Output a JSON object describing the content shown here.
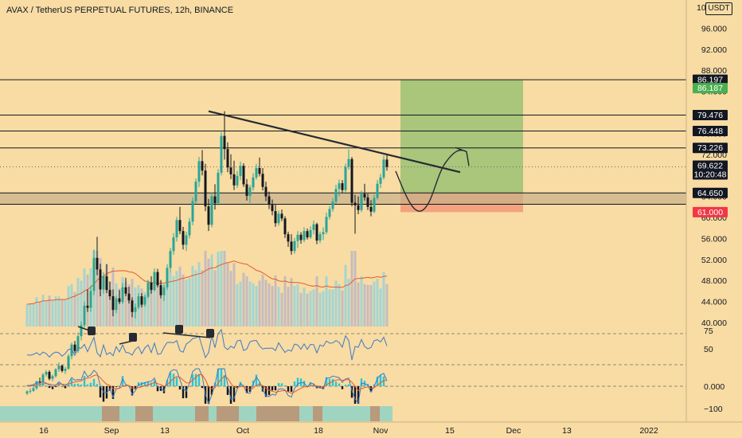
{
  "chart_data": {
    "type": "candlestick",
    "title": "AVAX / TetherUS PERPETUAL FUTURES, 12h, BINANCE",
    "quote_currency": "USDT",
    "price_ticks": [
      "100.000",
      "96.000",
      "92.000",
      "88.000",
      "84.000",
      "80.000",
      "76.000",
      "72.000",
      "68.000",
      "64.000",
      "60.000",
      "56.000",
      "52.000",
      "48.000",
      "44.000",
      "40.000"
    ],
    "x_ticks": [
      "16",
      "Sep",
      "13",
      "Oct",
      "18",
      "Nov",
      "15",
      "Dec",
      "13",
      "2022"
    ],
    "rsi_ticks": [
      "75",
      "50"
    ],
    "macd_ticks": [
      "0.000",
      "−100"
    ],
    "horizontal_levels": [
      {
        "price": 86.197,
        "label": "86.197",
        "color": "#131722",
        "text_color": "#ffffff"
      },
      {
        "price": 79.476,
        "label": "79.476",
        "color": "#131722",
        "text_color": "#ffffff"
      },
      {
        "price": 76.448,
        "label": "76.448",
        "color": "#131722",
        "text_color": "#ffffff"
      },
      {
        "price": 73.226,
        "label": "73.226",
        "color": "#131722",
        "text_color": "#ffffff"
      },
      {
        "price": 64.65,
        "label": "64.650",
        "color": "#131722",
        "text_color": "#ffffff"
      },
      {
        "price": 62.5,
        "label": "",
        "color": "#131722",
        "text_color": "#ffffff"
      }
    ],
    "price_tags": [
      {
        "price": 84.6,
        "label": "86.187",
        "color": "#4caf50",
        "text_color": "#ffffff"
      },
      {
        "price": 69.622,
        "label": "69.622",
        "sublabel": "10:20:48",
        "color": "#131722",
        "text_color": "#ffffff"
      },
      {
        "price": 61.0,
        "label": "61.000",
        "color": "#f23645",
        "text_color": "#ffffff"
      }
    ],
    "current_price": 69.622,
    "countdown": "10:20:48",
    "trade_box": {
      "entry": 64.65,
      "target": 86.197,
      "stop": 61.0
    },
    "trendline": {
      "from_price": 80.2,
      "to_price": 68.6
    },
    "zone": {
      "top": 64.65,
      "bottom": 62.5
    },
    "candles": [
      [
        26.5,
        27.1,
        26.2,
        26.9
      ],
      [
        26.9,
        27.5,
        26.5,
        27.0
      ],
      [
        27.0,
        27.8,
        26.8,
        27.5
      ],
      [
        27.5,
        28.9,
        27.2,
        28.8
      ],
      [
        28.8,
        29.5,
        28.3,
        28.7
      ],
      [
        28.7,
        30.4,
        28.4,
        30.1
      ],
      [
        30.1,
        31.0,
        29.7,
        30.6
      ],
      [
        30.6,
        30.9,
        29.0,
        29.3
      ],
      [
        29.3,
        30.1,
        28.8,
        29.8
      ],
      [
        29.8,
        31.3,
        29.5,
        31.1
      ],
      [
        31.1,
        32.4,
        30.6,
        31.8
      ],
      [
        31.8,
        32.0,
        30.5,
        30.8
      ],
      [
        30.8,
        31.6,
        30.2,
        31.2
      ],
      [
        31.2,
        34.0,
        31.0,
        33.6
      ],
      [
        33.6,
        36.2,
        33.0,
        35.8
      ],
      [
        35.8,
        36.5,
        34.2,
        34.6
      ],
      [
        34.6,
        38.1,
        34.2,
        37.4
      ],
      [
        37.4,
        40.2,
        36.6,
        39.5
      ],
      [
        39.5,
        44.0,
        39.0,
        43.2
      ],
      [
        43.2,
        46.3,
        42.0,
        42.8
      ],
      [
        42.8,
        47.0,
        42.0,
        46.0
      ],
      [
        46.0,
        53.9,
        45.2,
        52.3
      ],
      [
        52.3,
        56.3,
        49.0,
        50.1
      ],
      [
        50.1,
        51.2,
        45.0,
        46.3
      ],
      [
        46.3,
        49.6,
        45.5,
        48.8
      ],
      [
        48.8,
        51.1,
        45.6,
        46.2
      ],
      [
        46.2,
        47.8,
        44.3,
        45.0
      ],
      [
        45.0,
        46.3,
        41.2,
        42.4
      ],
      [
        42.4,
        45.1,
        41.8,
        44.6
      ],
      [
        44.6,
        46.2,
        43.5,
        43.9
      ],
      [
        43.9,
        47.5,
        43.5,
        46.7
      ],
      [
        46.7,
        48.5,
        45.0,
        45.5
      ],
      [
        45.5,
        46.8,
        43.6,
        44.2
      ],
      [
        44.2,
        44.8,
        41.0,
        42.0
      ],
      [
        42.0,
        43.6,
        40.8,
        42.9
      ],
      [
        42.9,
        45.6,
        42.5,
        45.0
      ],
      [
        45.0,
        45.6,
        42.9,
        43.4
      ],
      [
        43.4,
        45.3,
        43.0,
        44.9
      ],
      [
        44.9,
        48.1,
        44.6,
        47.6
      ],
      [
        47.6,
        48.8,
        45.5,
        46.2
      ],
      [
        46.2,
        50.3,
        45.9,
        49.6
      ],
      [
        49.6,
        50.2,
        46.7,
        47.1
      ],
      [
        47.1,
        48.1,
        44.6,
        45.2
      ],
      [
        45.2,
        47.3,
        44.1,
        46.7
      ],
      [
        46.7,
        51.1,
        46.2,
        50.4
      ],
      [
        50.4,
        54.2,
        49.6,
        53.6
      ],
      [
        53.6,
        57.0,
        52.9,
        56.2
      ],
      [
        56.2,
        60.1,
        55.4,
        59.5
      ],
      [
        59.5,
        62.0,
        56.8,
        57.4
      ],
      [
        57.4,
        58.2,
        53.9,
        54.8
      ],
      [
        54.8,
        57.3,
        53.6,
        56.6
      ],
      [
        56.6,
        59.9,
        56.0,
        59.2
      ],
      [
        59.2,
        63.8,
        58.5,
        63.1
      ],
      [
        63.1,
        67.4,
        62.6,
        66.8
      ],
      [
        66.8,
        71.5,
        65.8,
        70.7
      ],
      [
        70.7,
        72.8,
        68.0,
        68.9
      ],
      [
        68.9,
        70.2,
        61.2,
        62.1
      ],
      [
        62.1,
        63.5,
        57.4,
        58.6
      ],
      [
        58.6,
        64.7,
        58.1,
        64.0
      ],
      [
        64.0,
        66.3,
        61.5,
        62.7
      ],
      [
        62.7,
        69.2,
        62.3,
        68.5
      ],
      [
        68.5,
        76.2,
        68.0,
        75.5
      ],
      [
        75.5,
        80.2,
        71.0,
        73.0
      ],
      [
        73.0,
        74.3,
        68.6,
        69.5
      ],
      [
        69.5,
        72.0,
        67.3,
        68.2
      ],
      [
        68.2,
        70.8,
        65.2,
        66.1
      ],
      [
        66.1,
        68.8,
        65.6,
        67.9
      ],
      [
        67.9,
        70.6,
        67.1,
        69.8
      ],
      [
        69.8,
        70.3,
        65.8,
        66.3
      ],
      [
        66.3,
        67.3,
        63.2,
        64.1
      ],
      [
        64.1,
        66.2,
        62.7,
        65.7
      ],
      [
        65.7,
        68.4,
        65.1,
        67.6
      ],
      [
        67.6,
        70.2,
        67.2,
        69.4
      ],
      [
        69.4,
        71.4,
        67.8,
        68.3
      ],
      [
        68.3,
        69.4,
        65.1,
        65.8
      ],
      [
        65.8,
        66.8,
        63.1,
        64.0
      ],
      [
        64.0,
        64.9,
        61.6,
        62.4
      ],
      [
        62.4,
        63.4,
        60.4,
        61.2
      ],
      [
        61.2,
        62.4,
        58.2,
        58.9
      ],
      [
        58.9,
        61.3,
        58.4,
        60.7
      ],
      [
        60.7,
        61.5,
        59.3,
        59.8
      ],
      [
        59.8,
        60.2,
        56.1,
        56.8
      ],
      [
        56.8,
        57.3,
        54.4,
        55.4
      ],
      [
        55.4,
        56.8,
        52.9,
        53.6
      ],
      [
        53.6,
        56.1,
        53.1,
        55.5
      ],
      [
        55.5,
        57.4,
        54.2,
        56.7
      ],
      [
        56.7,
        57.2,
        55.0,
        55.7
      ],
      [
        55.7,
        58.1,
        55.3,
        57.4
      ],
      [
        57.4,
        57.9,
        55.8,
        56.2
      ],
      [
        56.2,
        58.3,
        55.9,
        57.6
      ],
      [
        57.6,
        59.4,
        56.8,
        58.7
      ],
      [
        58.7,
        59.0,
        54.9,
        55.6
      ],
      [
        55.6,
        57.3,
        55.1,
        56.8
      ],
      [
        56.8,
        58.1,
        55.7,
        57.2
      ],
      [
        57.2,
        60.9,
        56.8,
        60.1
      ],
      [
        60.1,
        62.2,
        59.6,
        61.6
      ],
      [
        61.6,
        63.7,
        61.1,
        63.0
      ],
      [
        63.0,
        66.2,
        62.6,
        65.4
      ],
      [
        65.4,
        67.2,
        64.0,
        66.5
      ],
      [
        66.5,
        67.1,
        64.6,
        65.2
      ],
      [
        65.2,
        70.2,
        64.8,
        69.6
      ],
      [
        69.6,
        72.9,
        69.1,
        71.1
      ],
      [
        71.1,
        71.5,
        62.1,
        62.8
      ],
      [
        62.8,
        64.3,
        56.9,
        62.3
      ],
      [
        62.3,
        64.0,
        60.6,
        61.4
      ],
      [
        61.4,
        65.1,
        61.0,
        64.5
      ],
      [
        64.5,
        66.4,
        63.2,
        63.8
      ],
      [
        63.8,
        64.5,
        61.4,
        62.0
      ],
      [
        62.0,
        63.3,
        60.2,
        61.1
      ],
      [
        61.1,
        64.3,
        60.8,
        63.7
      ],
      [
        63.7,
        67.1,
        63.3,
        66.4
      ],
      [
        66.4,
        68.3,
        65.6,
        67.6
      ],
      [
        67.6,
        71.8,
        67.2,
        71.0
      ],
      [
        71.0,
        72.1,
        68.9,
        69.6
      ]
    ]
  }
}
